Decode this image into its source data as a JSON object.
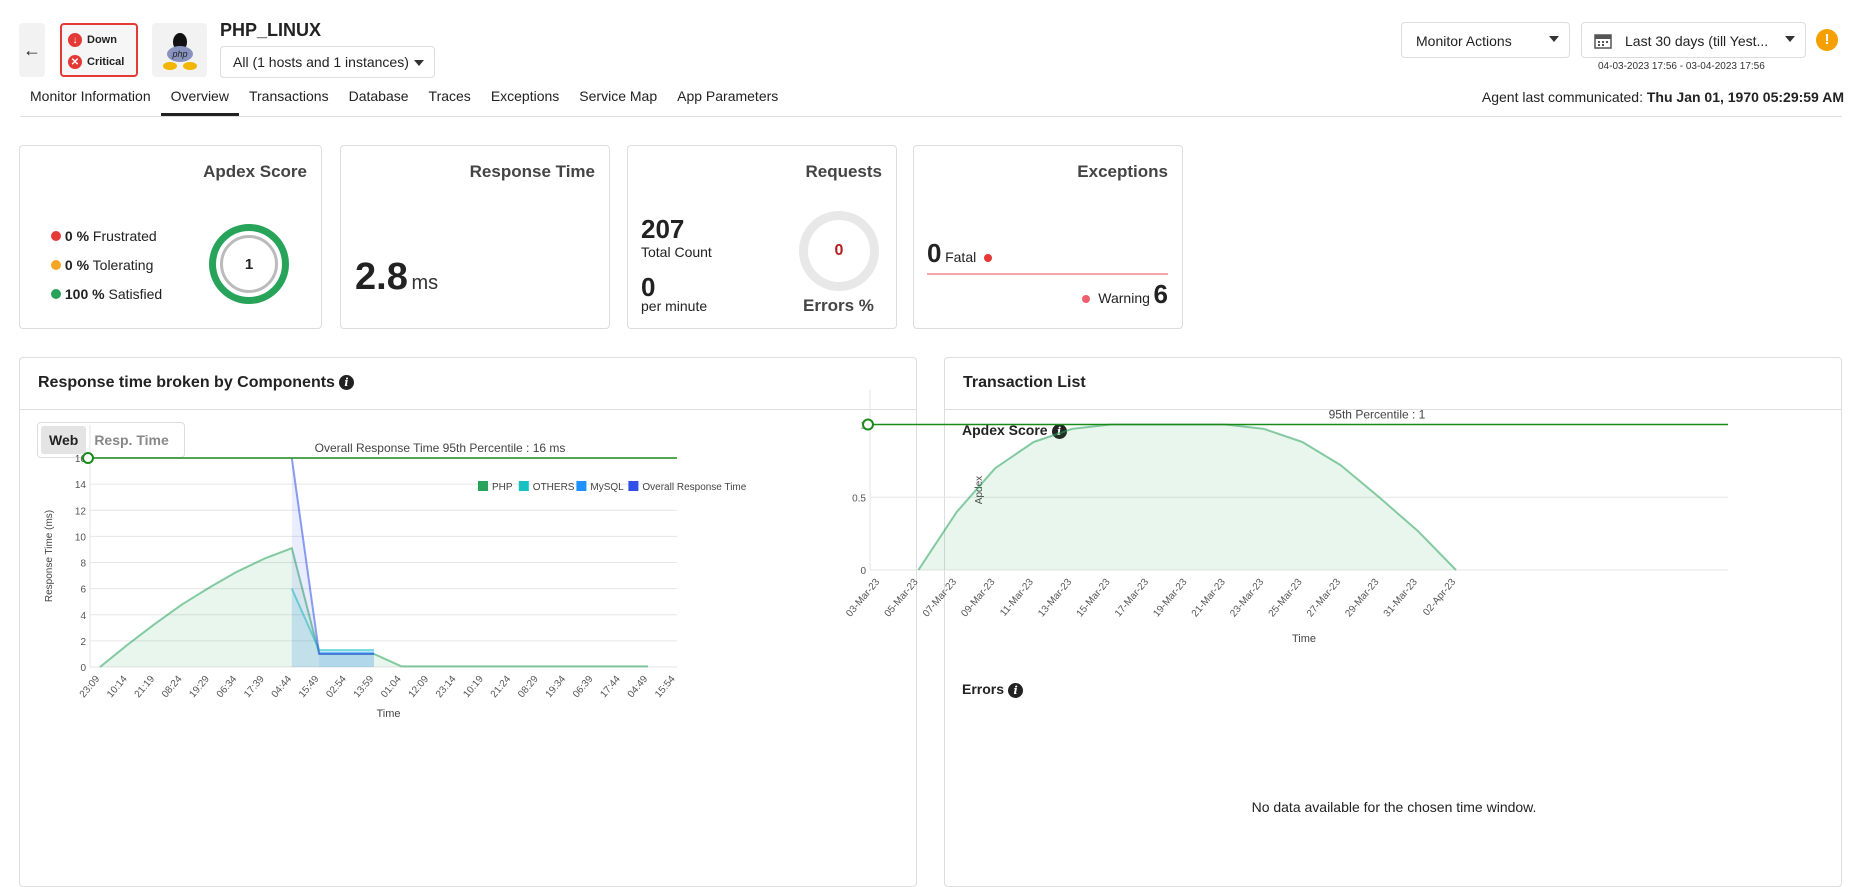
{
  "header": {
    "title": "PHP_LINUX",
    "status_down": "Down",
    "status_critical": "Critical",
    "instance_select": "All (1 hosts and 1 instances)",
    "monitor_actions": "Monitor Actions",
    "date_range": "Last 30 days (till Yest...",
    "date_sub": "04-03-2023 17:56 - 03-04-2023 17:56",
    "agent_label": "Agent last communicated:",
    "agent_value": "Thu Jan 01, 1970 05:29:59 AM",
    "logo_text": "php"
  },
  "tabs": [
    "Monitor Information",
    "Overview",
    "Transactions",
    "Database",
    "Traces",
    "Exceptions",
    "Service Map",
    "App Parameters"
  ],
  "active_tab": "Overview",
  "apdex": {
    "title": "Apdex Score",
    "frustrated_pct": "0 %",
    "frustrated": "Frustrated",
    "tolerating_pct": "0 %",
    "tolerating": "Tolerating",
    "satisfied_pct": "100 %",
    "satisfied": "Satisfied",
    "score": "1",
    "colors": {
      "frustrated": "#e53935",
      "tolerating": "#f5a623",
      "satisfied": "#27a35a"
    }
  },
  "response": {
    "title": "Response Time",
    "value": "2.8",
    "unit": "ms"
  },
  "requests": {
    "title": "Requests",
    "total": "207",
    "total_label": "Total Count",
    "per_min": "0",
    "per_min_label": "per minute",
    "errors": "0",
    "errors_label": "Errors %"
  },
  "exceptions": {
    "title": "Exceptions",
    "fatal": "0",
    "fatal_label": "Fatal",
    "warning_label": "Warning",
    "warning": "6"
  },
  "left_panel": {
    "title": "Response time broken by Components",
    "toggle_web": "Web",
    "toggle_resp": "Resp. Time"
  },
  "right_panel": {
    "title": "Transaction List",
    "apdex_title": "Apdex Score",
    "errors_title": "Errors",
    "no_data": "No data available for the chosen time window."
  },
  "chart_data": [
    {
      "type": "area",
      "title": "",
      "xlabel": "Time",
      "ylabel": "Response Time (ms)",
      "ylim": [
        0,
        17
      ],
      "yticks": [
        0,
        2,
        4,
        6,
        8,
        10,
        12,
        14,
        16
      ],
      "legend_position": "top-right",
      "annotation": "Overall Response Time 95th Percentile : 16 ms",
      "threshold": 16,
      "categories": [
        "23:09",
        "10:14",
        "21:19",
        "08:24",
        "19:29",
        "06:34",
        "17:39",
        "04:44",
        "15:49",
        "02:54",
        "13:59",
        "01:04",
        "12:09",
        "23:14",
        "10:19",
        "21:24",
        "08:29",
        "19:34",
        "06:39",
        "17:44",
        "04:49",
        "15:54"
      ],
      "series": [
        {
          "name": "PHP",
          "color": "#27a35a",
          "values": [
            0,
            1.7,
            3.3,
            4.8,
            6.1,
            7.3,
            8.3,
            9.1,
            1.0,
            1.0,
            1.0,
            0.05,
            0.05,
            0.05,
            0.05,
            0.05,
            0.05,
            0.05,
            0.05,
            0.05,
            0.05,
            null
          ]
        },
        {
          "name": "OTHERS",
          "color": "#17c1c1",
          "values": [
            null,
            null,
            null,
            null,
            null,
            null,
            null,
            6,
            1.3,
            1.3,
            1.3,
            null,
            null,
            null,
            null,
            null,
            null,
            null,
            null,
            null,
            null,
            null
          ]
        },
        {
          "name": "MySQL",
          "color": "#1e90ff",
          "values": [
            null,
            null,
            null,
            null,
            null,
            null,
            null,
            null,
            1.1,
            1.1,
            1.1,
            null,
            null,
            null,
            null,
            null,
            null,
            null,
            null,
            null,
            null,
            null
          ]
        },
        {
          "name": "Overall Response Time",
          "color": "#3050e8",
          "values": [
            null,
            null,
            null,
            null,
            null,
            null,
            null,
            16,
            1.0,
            1.0,
            1.0,
            null,
            null,
            null,
            null,
            null,
            null,
            null,
            null,
            null,
            null,
            null
          ]
        }
      ]
    },
    {
      "type": "area",
      "title": "",
      "xlabel": "Time",
      "ylabel": "Apdex",
      "ylim": [
        0,
        1.1
      ],
      "yticks": [
        0,
        0.5,
        1
      ],
      "annotation": "95th Percentile : 1",
      "threshold": 1,
      "categories": [
        "03-Mar-23",
        "05-Mar-23",
        "07-Mar-23",
        "09-Mar-23",
        "11-Mar-23",
        "13-Mar-23",
        "15-Mar-23",
        "17-Mar-23",
        "19-Mar-23",
        "21-Mar-23",
        "23-Mar-23",
        "25-Mar-23",
        "27-Mar-23",
        "29-Mar-23",
        "31-Mar-23",
        "02-Apr-23"
      ],
      "series": [
        {
          "color": "#27a35a",
          "values": [
            null,
            0,
            0.4,
            0.7,
            0.88,
            0.97,
            1,
            1,
            1,
            1,
            0.97,
            0.88,
            0.72,
            0.5,
            0.27,
            0
          ]
        }
      ]
    }
  ]
}
